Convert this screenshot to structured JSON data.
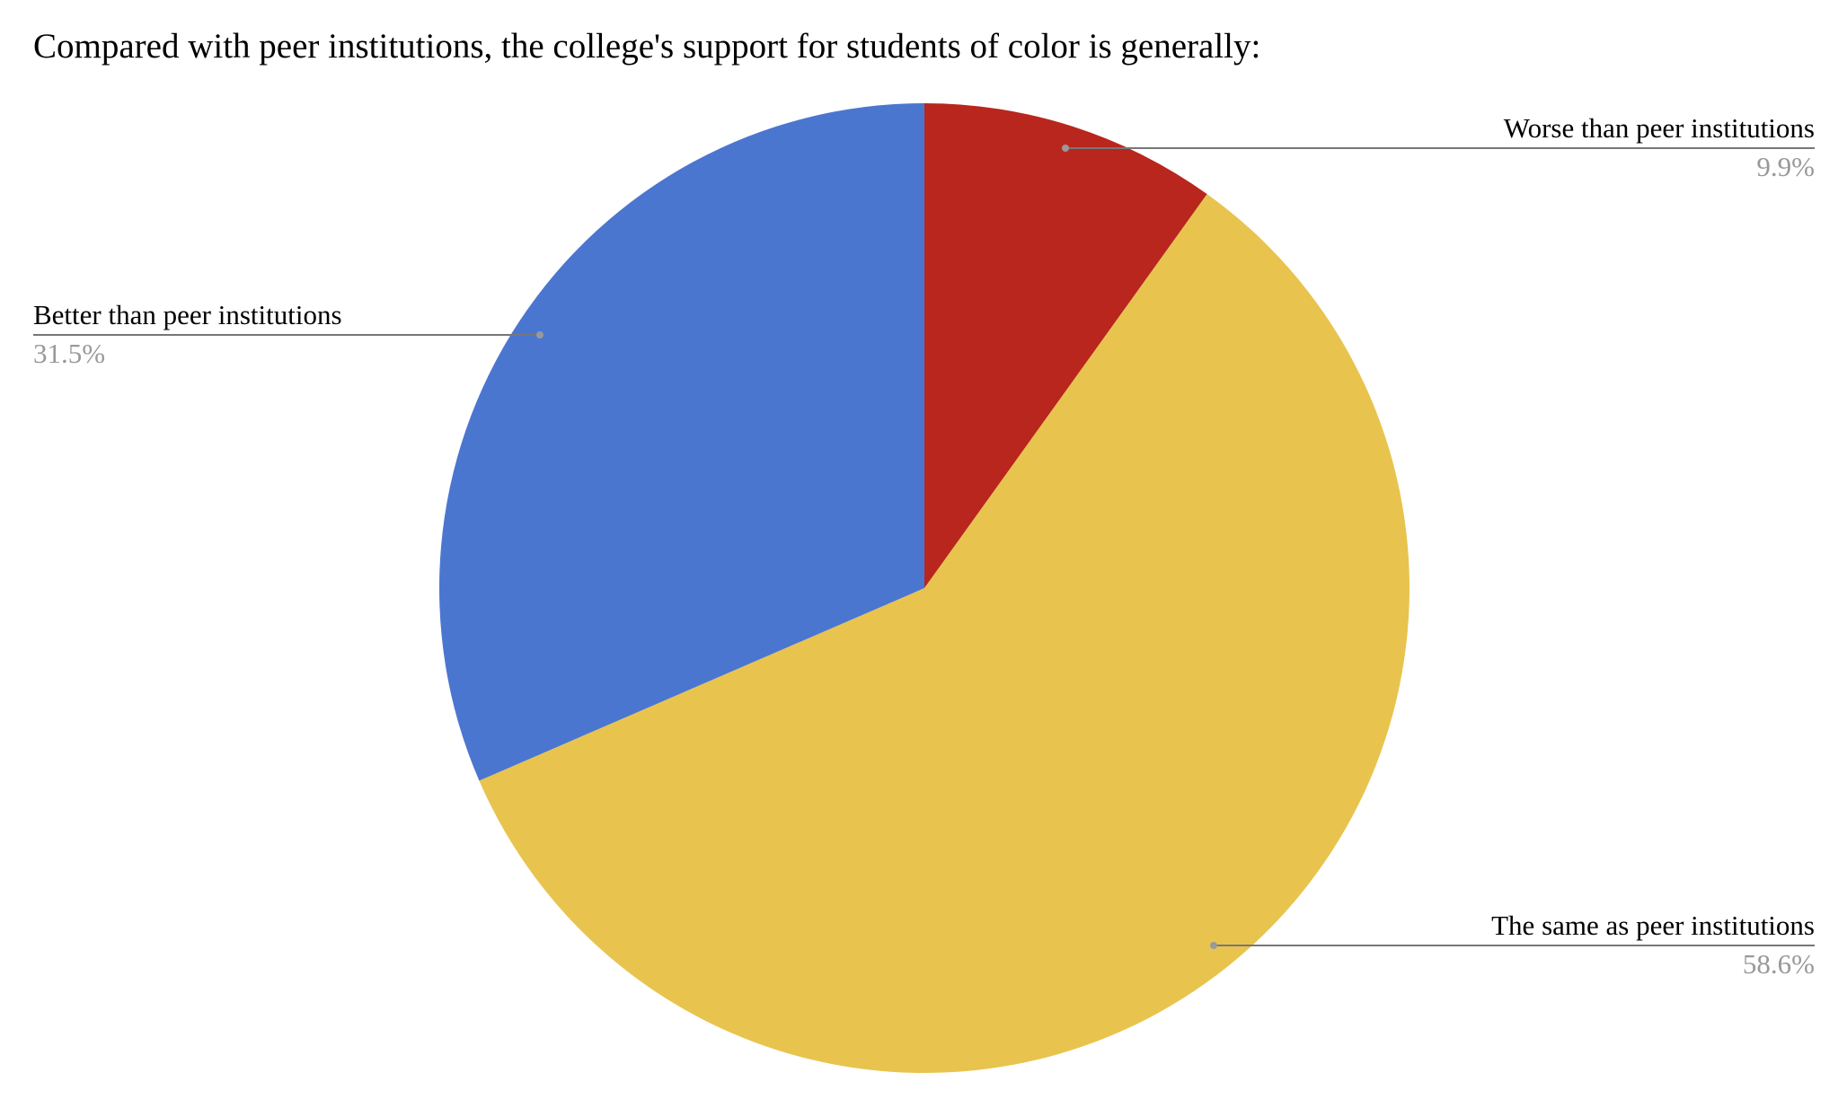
{
  "chart_data": {
    "type": "pie",
    "title": "Compared with peer institutions, the college's support for students of color is generally:",
    "categories": [
      "Worse than peer institutions",
      "The same as peer institutions",
      "Better than peer institutions"
    ],
    "values": [
      9.9,
      58.6,
      31.5
    ],
    "value_labels": [
      "9.9%",
      "58.6%",
      "31.5%"
    ],
    "colors": [
      "#b9261d",
      "#e8c44f",
      "#4b76d0"
    ]
  }
}
